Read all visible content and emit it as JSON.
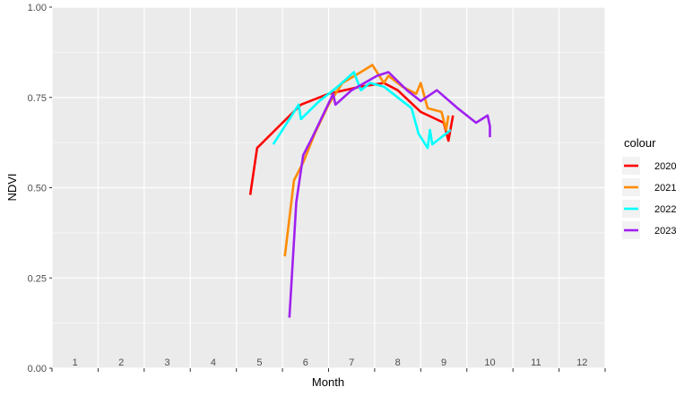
{
  "chart_data": {
    "type": "line",
    "xlabel": "Month",
    "ylabel": "NDVI",
    "xlim": [
      0,
      12
    ],
    "ylim": [
      0,
      1
    ],
    "grid": true,
    "legend_placement": "right",
    "legend_title": "colour",
    "month_labels": [
      "1",
      "2",
      "3",
      "4",
      "5",
      "6",
      "7",
      "8",
      "9",
      "10",
      "11",
      "12"
    ],
    "y_ticks": [
      {
        "value": 0.0,
        "label": "0.00"
      },
      {
        "value": 0.25,
        "label": "0.25"
      },
      {
        "value": 0.5,
        "label": "0.50"
      },
      {
        "value": 0.75,
        "label": "0.75"
      },
      {
        "value": 1.0,
        "label": "1.00"
      }
    ],
    "series": [
      {
        "name": "2020",
        "color": "#ff0000",
        "points": [
          [
            4.3,
            0.48
          ],
          [
            4.45,
            0.61
          ],
          [
            5.0,
            0.68
          ],
          [
            5.4,
            0.73
          ],
          [
            6.0,
            0.76
          ],
          [
            6.7,
            0.78
          ],
          [
            7.2,
            0.79
          ],
          [
            7.5,
            0.77
          ],
          [
            8.0,
            0.71
          ],
          [
            8.5,
            0.68
          ],
          [
            8.6,
            0.63
          ],
          [
            8.7,
            0.7
          ]
        ]
      },
      {
        "name": "2021",
        "color": "#ff8c00",
        "points": [
          [
            5.05,
            0.31
          ],
          [
            5.25,
            0.52
          ],
          [
            5.45,
            0.57
          ],
          [
            5.7,
            0.65
          ],
          [
            6.0,
            0.73
          ],
          [
            6.3,
            0.79
          ],
          [
            6.7,
            0.82
          ],
          [
            6.95,
            0.84
          ],
          [
            7.2,
            0.79
          ],
          [
            7.3,
            0.81
          ],
          [
            7.6,
            0.78
          ],
          [
            7.9,
            0.76
          ],
          [
            8.0,
            0.79
          ],
          [
            8.15,
            0.72
          ],
          [
            8.45,
            0.71
          ],
          [
            8.55,
            0.66
          ],
          [
            8.6,
            0.7
          ]
        ]
      },
      {
        "name": "2022",
        "color": "#00ffff",
        "points": [
          [
            4.8,
            0.62
          ],
          [
            5.0,
            0.66
          ],
          [
            5.35,
            0.73
          ],
          [
            5.4,
            0.69
          ],
          [
            5.8,
            0.74
          ],
          [
            6.2,
            0.78
          ],
          [
            6.55,
            0.82
          ],
          [
            6.7,
            0.77
          ],
          [
            6.9,
            0.79
          ],
          [
            7.2,
            0.78
          ],
          [
            7.8,
            0.72
          ],
          [
            7.95,
            0.65
          ],
          [
            8.15,
            0.61
          ],
          [
            8.2,
            0.66
          ],
          [
            8.25,
            0.62
          ],
          [
            8.65,
            0.66
          ]
        ]
      },
      {
        "name": "2023",
        "color": "#a020f0",
        "points": [
          [
            5.15,
            0.14
          ],
          [
            5.3,
            0.46
          ],
          [
            5.45,
            0.59
          ],
          [
            5.65,
            0.64
          ],
          [
            6.1,
            0.76
          ],
          [
            6.15,
            0.73
          ],
          [
            6.5,
            0.77
          ],
          [
            7.05,
            0.81
          ],
          [
            7.3,
            0.82
          ],
          [
            7.7,
            0.77
          ],
          [
            8.0,
            0.74
          ],
          [
            8.35,
            0.77
          ],
          [
            8.8,
            0.72
          ],
          [
            9.2,
            0.68
          ],
          [
            9.45,
            0.7
          ],
          [
            9.5,
            0.67
          ],
          [
            9.5,
            0.64
          ]
        ]
      }
    ]
  }
}
